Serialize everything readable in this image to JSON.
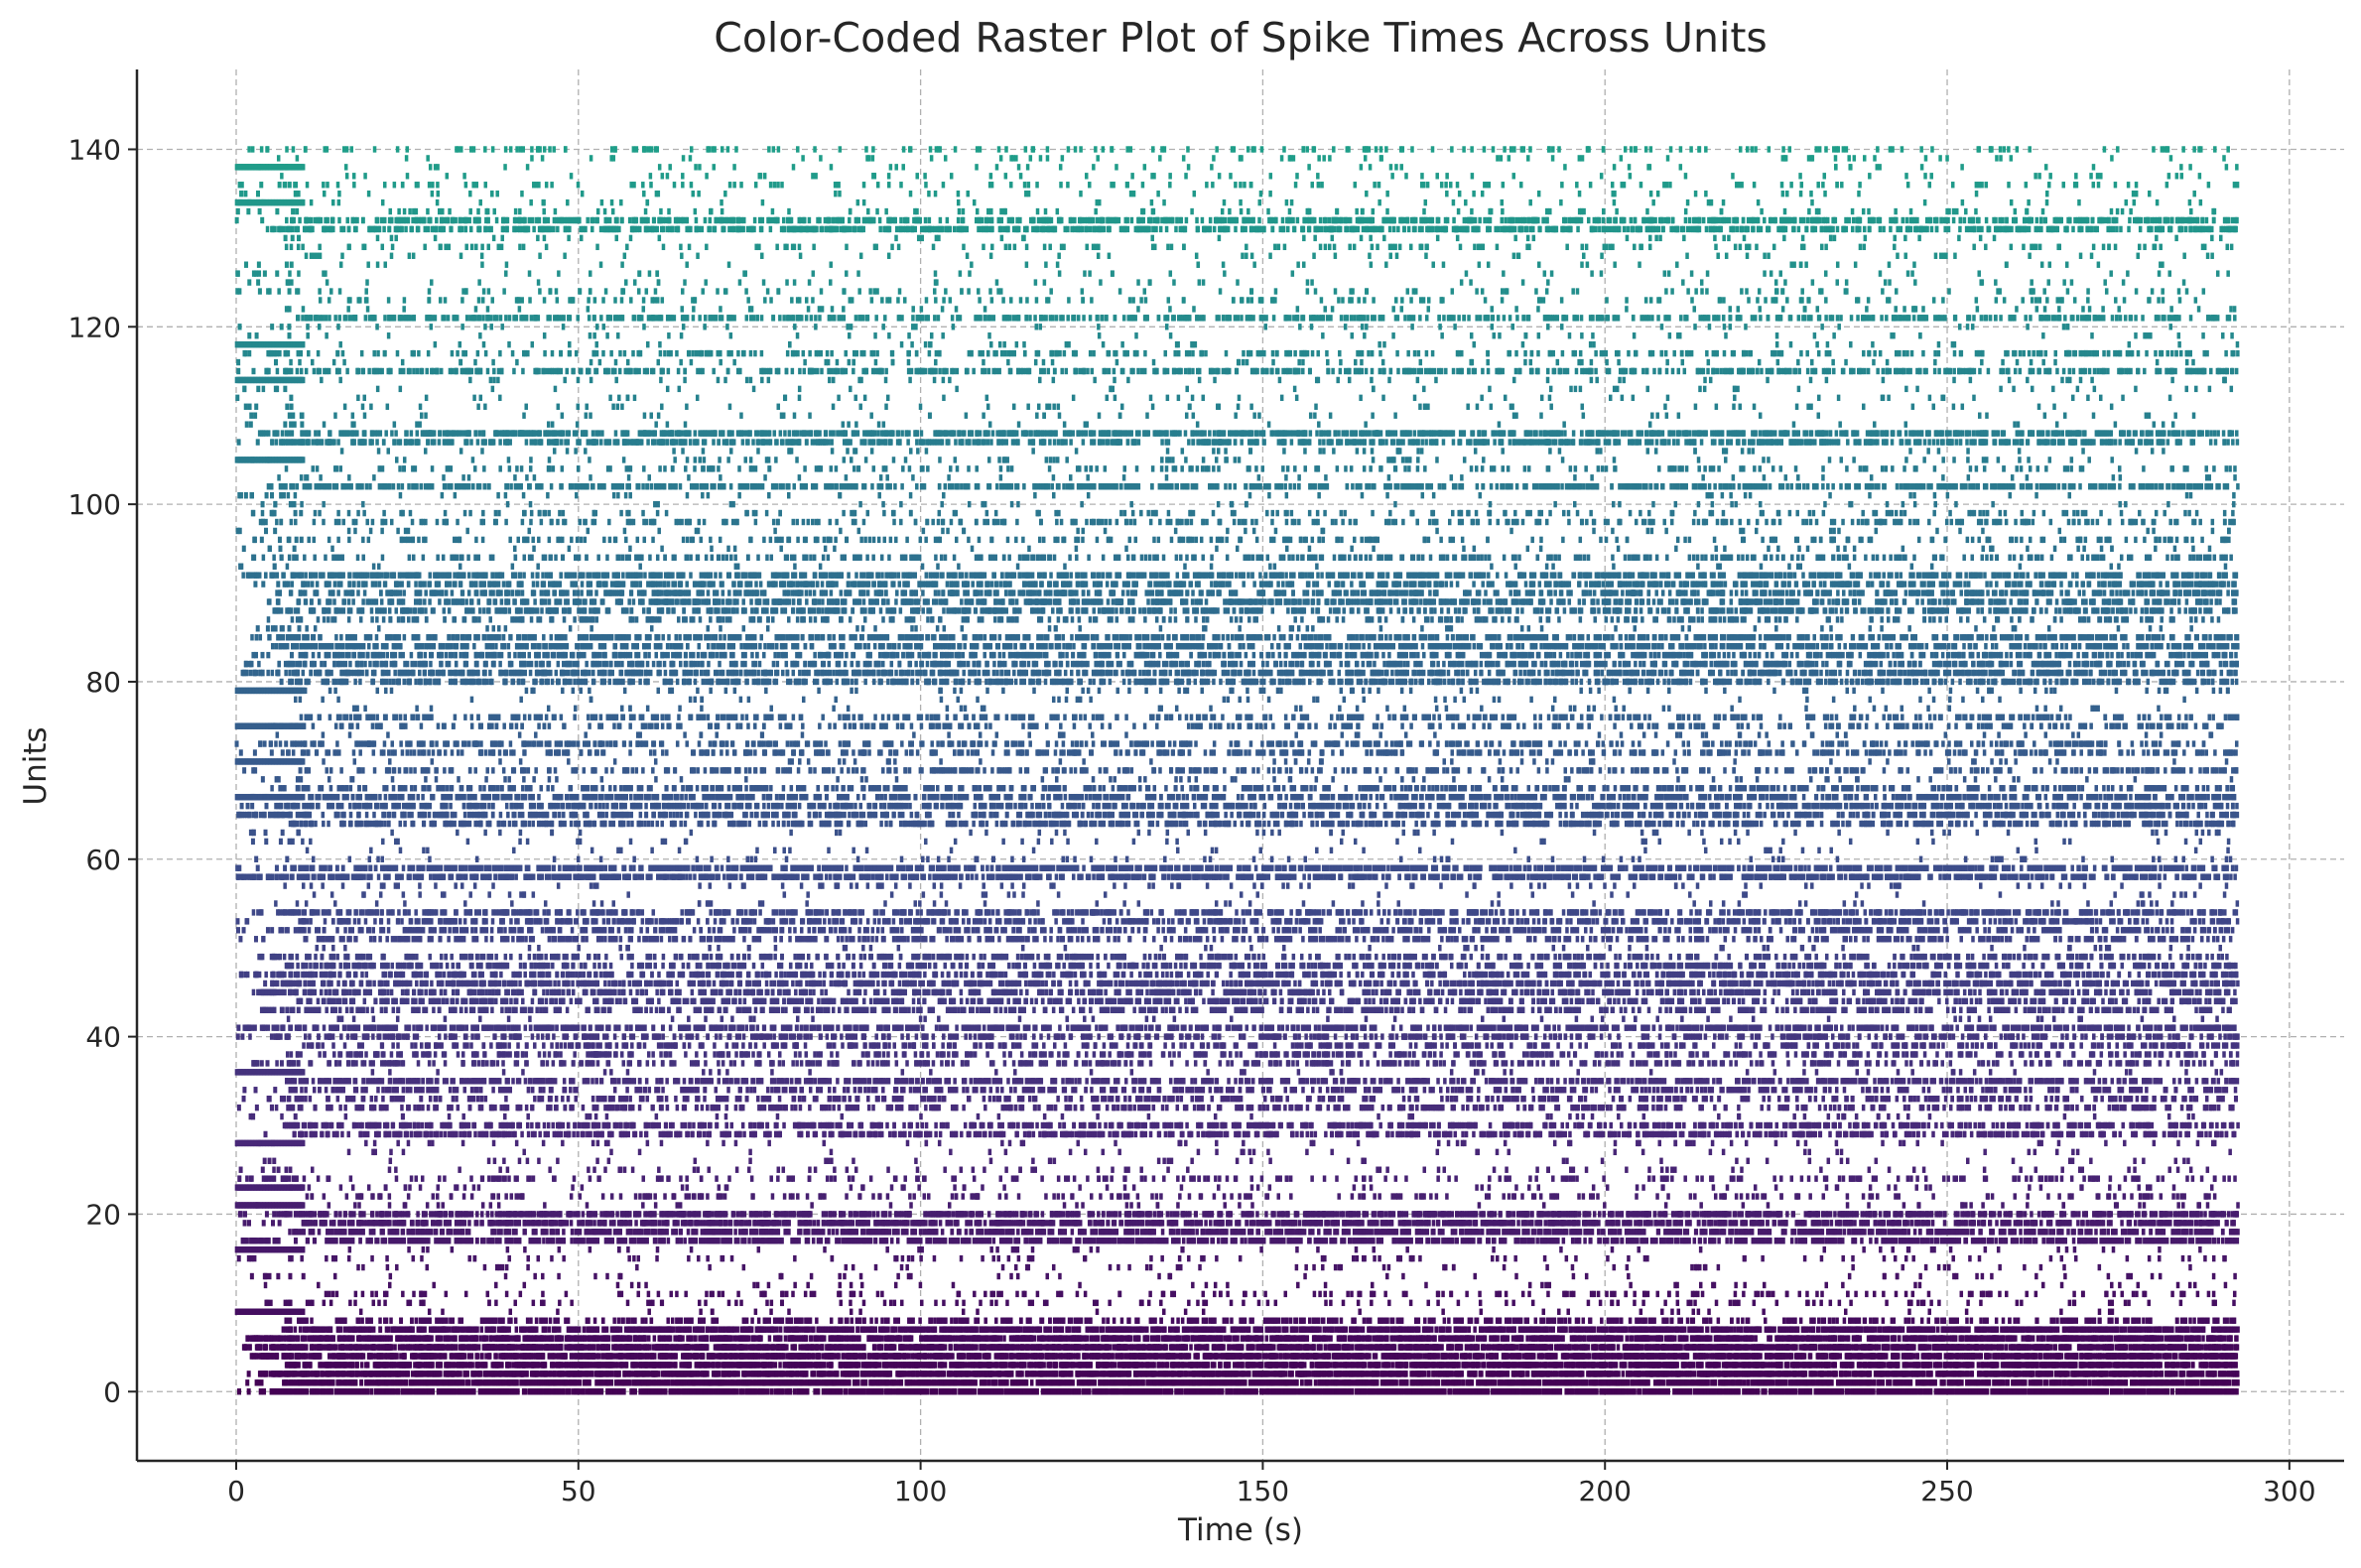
{
  "chart_data": {
    "type": "scatter",
    "subtype": "raster",
    "title": "Color-Coded Raster Plot of Spike Times Across Units",
    "xlabel": "Time (s)",
    "ylabel": "Units",
    "xlim": [
      -14.5,
      308
    ],
    "ylim": [
      -7.8,
      149
    ],
    "x_ticks": [
      0,
      50,
      100,
      150,
      200,
      250,
      300
    ],
    "x_tick_labels": [
      "0",
      "50",
      "100",
      "150",
      "200",
      "250",
      "300"
    ],
    "y_ticks": [
      0,
      20,
      40,
      60,
      80,
      100,
      120,
      140
    ],
    "y_tick_labels": [
      "0",
      "20",
      "40",
      "60",
      "80",
      "100",
      "120",
      "140"
    ],
    "grid": true,
    "grid_style": "dashed",
    "spines": "left-bottom",
    "colormap": [
      "#440154",
      "#482878",
      "#3e4a89",
      "#31688e",
      "#26828e",
      "#1f9e89"
    ],
    "n_units": 141,
    "time_range": [
      0,
      293
    ],
    "burst_window": [
      0,
      10
    ],
    "burst_units": [
      9,
      16,
      21,
      23,
      28,
      36,
      67,
      71,
      75,
      79,
      105,
      114,
      118,
      134,
      138
    ],
    "unit_rates_hz": [
      6.5,
      6.5,
      6.5,
      6.5,
      6.5,
      6.5,
      5.6,
      5.6,
      2.0,
      0.2,
      0.5,
      0.7,
      0.2,
      0.2,
      0.2,
      0.3,
      0.2,
      3.6,
      3.6,
      4.0,
      3.6,
      0.2,
      0.8,
      0.3,
      0.8,
      0.3,
      0.2,
      0.2,
      0.3,
      2.6,
      2.6,
      0.2,
      1.6,
      1.6,
      1.8,
      2.8,
      0.2,
      1.6,
      1.6,
      1.6,
      2.0,
      3.0,
      0.2,
      2.0,
      2.4,
      2.6,
      3.0,
      2.4,
      2.2,
      2.0,
      0.2,
      1.8,
      2.2,
      2.6,
      2.6,
      0.2,
      0.2,
      0.3,
      3.4,
      3.4,
      0.3,
      0.2,
      0.2,
      0.2,
      2.4,
      2.6,
      2.6,
      2.8,
      2.2,
      0.3,
      1.6,
      0.2,
      1.6,
      1.6,
      0.2,
      1.2,
      1.6,
      0.2,
      0.2,
      0.3,
      2.6,
      3.4,
      2.4,
      2.6,
      3.0,
      2.6,
      0.2,
      1.0,
      2.4,
      2.6,
      2.4,
      2.6,
      3.0,
      0.2,
      1.4,
      0.2,
      1.0,
      0.2,
      1.2,
      0.6,
      0.2,
      0.2,
      2.8,
      0.2,
      0.7,
      0.3,
      0.2,
      2.8,
      3.2,
      0.2,
      0.2,
      0.2,
      0.2,
      0.2,
      0.2,
      2.2,
      0.3,
      1.2,
      0.2,
      0.2,
      0.2,
      2.2,
      0.2,
      0.6,
      0.4,
      0.2,
      0.2,
      0.2,
      0.2,
      0.5,
      0.2,
      2.8,
      2.8,
      0.4,
      0.2,
      0.2,
      0.5,
      0.2,
      0.2,
      0.2,
      0.6
    ]
  }
}
